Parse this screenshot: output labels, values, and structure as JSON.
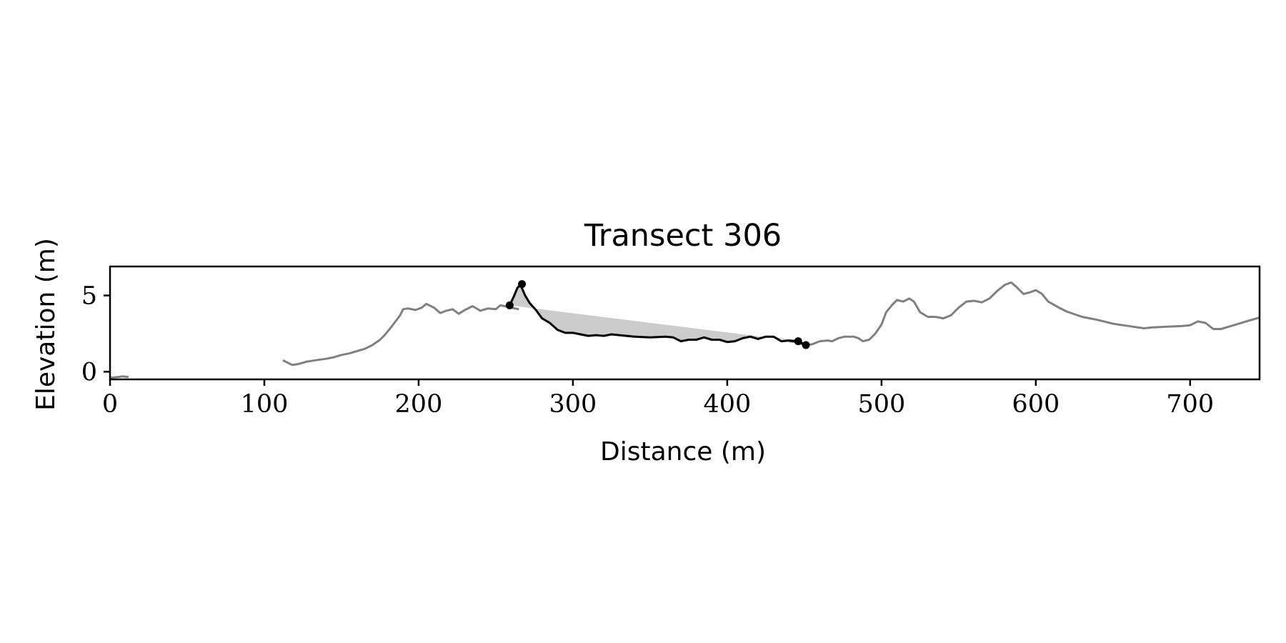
{
  "chart_data": {
    "type": "line",
    "title": "Transect 306",
    "xlabel": "Distance (m)",
    "ylabel": "Elevation (m)",
    "xlim": [
      0,
      745
    ],
    "ylim": [
      -0.5,
      6.9
    ],
    "xticks": [
      0,
      100,
      200,
      300,
      400,
      500,
      600,
      700
    ],
    "yticks": [
      0,
      5
    ],
    "grid": false,
    "legend": "none",
    "colors": {
      "profile": "#808080",
      "highlight": "#000000",
      "fill": "#cccccc",
      "axes": "#000000"
    },
    "series": [
      {
        "role": "profile",
        "segments": [
          [
            [
              0,
              -0.4
            ],
            [
              5,
              -0.35
            ],
            [
              8,
              -0.3
            ],
            [
              12,
              -0.35
            ]
          ],
          [
            [
              112,
              0.75
            ],
            [
              115,
              0.6
            ],
            [
              118,
              0.45
            ],
            [
              122,
              0.5
            ],
            [
              127,
              0.65
            ],
            [
              133,
              0.75
            ],
            [
              140,
              0.85
            ],
            [
              145,
              0.95
            ],
            [
              150,
              1.1
            ],
            [
              155,
              1.2
            ],
            [
              160,
              1.35
            ],
            [
              165,
              1.5
            ],
            [
              170,
              1.75
            ],
            [
              175,
              2.1
            ],
            [
              178,
              2.4
            ],
            [
              182,
              2.9
            ],
            [
              185,
              3.3
            ],
            [
              188,
              3.7
            ],
            [
              190,
              4.1
            ],
            [
              193,
              4.15
            ],
            [
              198,
              4.05
            ],
            [
              202,
              4.2
            ],
            [
              205,
              4.45
            ],
            [
              210,
              4.2
            ],
            [
              214,
              3.85
            ],
            [
              218,
              4.0
            ],
            [
              222,
              4.1
            ],
            [
              226,
              3.8
            ],
            [
              230,
              4.05
            ],
            [
              235,
              4.3
            ],
            [
              240,
              4.0
            ],
            [
              245,
              4.15
            ],
            [
              250,
              4.1
            ],
            [
              253,
              4.35
            ],
            [
              256,
              4.3
            ],
            [
              260,
              4.2
            ],
            [
              265,
              4.1
            ]
          ],
          [
            [
              440,
              2.0
            ],
            [
              445,
              1.95
            ],
            [
              450,
              1.75
            ],
            [
              455,
              1.8
            ],
            [
              460,
              2.0
            ],
            [
              465,
              2.05
            ],
            [
              468,
              2.0
            ],
            [
              472,
              2.2
            ],
            [
              476,
              2.3
            ],
            [
              482,
              2.3
            ],
            [
              485,
              2.2
            ],
            [
              488,
              2.0
            ],
            [
              492,
              2.1
            ],
            [
              496,
              2.5
            ],
            [
              500,
              3.1
            ],
            [
              503,
              3.9
            ],
            [
              507,
              4.4
            ],
            [
              510,
              4.7
            ],
            [
              514,
              4.6
            ],
            [
              518,
              4.8
            ],
            [
              521,
              4.6
            ],
            [
              525,
              3.9
            ],
            [
              530,
              3.6
            ],
            [
              535,
              3.6
            ],
            [
              540,
              3.5
            ],
            [
              545,
              3.7
            ],
            [
              550,
              4.2
            ],
            [
              555,
              4.6
            ],
            [
              560,
              4.65
            ],
            [
              565,
              4.55
            ],
            [
              570,
              4.8
            ],
            [
              575,
              5.3
            ],
            [
              580,
              5.7
            ],
            [
              584,
              5.85
            ],
            [
              587,
              5.6
            ],
            [
              592,
              5.1
            ],
            [
              596,
              5.2
            ],
            [
              600,
              5.35
            ],
            [
              604,
              5.1
            ],
            [
              608,
              4.6
            ],
            [
              615,
              4.2
            ],
            [
              620,
              3.95
            ],
            [
              630,
              3.6
            ],
            [
              640,
              3.4
            ],
            [
              650,
              3.15
            ],
            [
              660,
              3.0
            ],
            [
              670,
              2.85
            ],
            [
              675,
              2.9
            ],
            [
              685,
              2.95
            ],
            [
              695,
              3.0
            ],
            [
              700,
              3.05
            ],
            [
              705,
              3.3
            ],
            [
              710,
              3.2
            ],
            [
              715,
              2.8
            ],
            [
              720,
              2.8
            ],
            [
              730,
              3.1
            ],
            [
              738,
              3.35
            ],
            [
              745,
              3.55
            ]
          ]
        ]
      },
      {
        "role": "highlight",
        "points": [
          [
            259,
            4.35
          ],
          [
            262,
            5.0
          ],
          [
            264,
            5.5
          ],
          [
            266,
            5.7
          ],
          [
            269,
            5.0
          ],
          [
            272,
            4.5
          ],
          [
            276,
            4.05
          ],
          [
            280,
            3.5
          ],
          [
            285,
            3.2
          ],
          [
            290,
            2.75
          ],
          [
            295,
            2.55
          ],
          [
            300,
            2.55
          ],
          [
            305,
            2.45
          ],
          [
            310,
            2.35
          ],
          [
            315,
            2.4
          ],
          [
            320,
            2.35
          ],
          [
            325,
            2.45
          ],
          [
            330,
            2.4
          ],
          [
            340,
            2.3
          ],
          [
            350,
            2.25
          ],
          [
            360,
            2.3
          ],
          [
            365,
            2.25
          ],
          [
            370,
            2.0
          ],
          [
            375,
            2.1
          ],
          [
            380,
            2.1
          ],
          [
            385,
            2.25
          ],
          [
            390,
            2.1
          ],
          [
            395,
            2.1
          ],
          [
            400,
            1.95
          ],
          [
            405,
            2.0
          ],
          [
            410,
            2.2
          ],
          [
            415,
            2.3
          ],
          [
            420,
            2.15
          ],
          [
            425,
            2.3
          ],
          [
            430,
            2.3
          ],
          [
            435,
            2.0
          ],
          [
            440,
            2.05
          ],
          [
            446,
            2.0
          ],
          [
            451,
            1.75
          ]
        ],
        "markers": [
          [
            259,
            4.35
          ],
          [
            267,
            5.75
          ],
          [
            446,
            2.0
          ],
          [
            451,
            1.75
          ]
        ]
      },
      {
        "role": "fill",
        "polygon": [
          [
            259,
            4.35
          ],
          [
            262,
            5.0
          ],
          [
            264,
            5.5
          ],
          [
            266,
            5.7
          ],
          [
            269,
            5.0
          ],
          [
            272,
            4.5
          ],
          [
            276,
            4.05
          ],
          [
            280,
            3.5
          ],
          [
            285,
            3.2
          ],
          [
            290,
            2.75
          ],
          [
            295,
            2.55
          ],
          [
            300,
            2.55
          ],
          [
            305,
            2.45
          ],
          [
            310,
            2.35
          ],
          [
            315,
            2.4
          ],
          [
            320,
            2.35
          ],
          [
            325,
            2.45
          ],
          [
            330,
            2.4
          ],
          [
            340,
            2.3
          ],
          [
            350,
            2.25
          ],
          [
            360,
            2.3
          ],
          [
            365,
            2.25
          ],
          [
            370,
            2.0
          ],
          [
            375,
            2.1
          ],
          [
            380,
            2.1
          ],
          [
            385,
            2.25
          ],
          [
            390,
            2.1
          ],
          [
            395,
            2.1
          ],
          [
            400,
            1.95
          ],
          [
            405,
            2.0
          ],
          [
            410,
            2.2
          ],
          [
            415,
            2.3
          ],
          [
            420,
            2.15
          ],
          [
            425,
            2.3
          ],
          [
            430,
            2.3
          ],
          [
            446,
            2.0
          ]
        ]
      }
    ]
  }
}
